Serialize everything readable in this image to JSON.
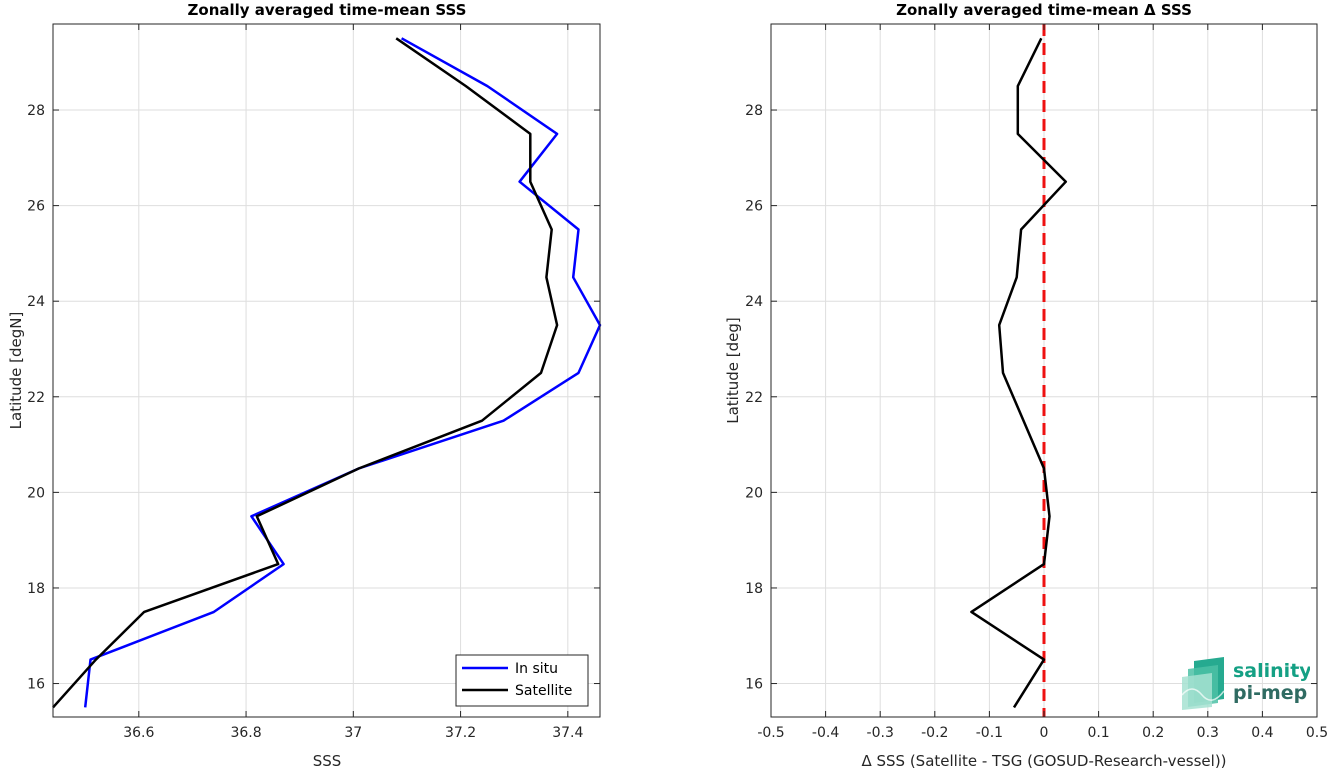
{
  "chart_data": [
    {
      "type": "line",
      "title": "Zonally averaged time-mean SSS",
      "xlabel": "SSS",
      "ylabel": "Latitude [degN]",
      "xlim": [
        36.44,
        37.46
      ],
      "ylim": [
        15.3,
        29.8
      ],
      "xticks": [
        36.6,
        36.8,
        37,
        37.2,
        37.4
      ],
      "xtick_labels": [
        "36.6",
        "36.8",
        "37",
        "37.2",
        "37.4"
      ],
      "yticks": [
        16,
        18,
        20,
        22,
        24,
        26,
        28
      ],
      "ytick_labels": [
        "16",
        "18",
        "20",
        "22",
        "24",
        "26",
        "28"
      ],
      "grid": true,
      "legend_position": "bottom-right",
      "series": [
        {
          "name": "In situ",
          "color": "#0000ff",
          "points": [
            [
              36.5,
              15.5
            ],
            [
              36.51,
              16.5
            ],
            [
              36.74,
              17.5
            ],
            [
              36.87,
              18.5
            ],
            [
              36.81,
              19.5
            ],
            [
              37.01,
              20.5
            ],
            [
              37.28,
              21.5
            ],
            [
              37.42,
              22.5
            ],
            [
              37.46,
              23.5
            ],
            [
              37.41,
              24.5
            ],
            [
              37.42,
              25.5
            ],
            [
              37.31,
              26.5
            ],
            [
              37.38,
              27.5
            ],
            [
              37.25,
              28.5
            ],
            [
              37.09,
              29.5
            ]
          ]
        },
        {
          "name": "Satellite",
          "color": "#000000",
          "points": [
            [
              36.44,
              15.5
            ],
            [
              36.52,
              16.5
            ],
            [
              36.61,
              17.5
            ],
            [
              36.86,
              18.5
            ],
            [
              36.82,
              19.5
            ],
            [
              37.01,
              20.5
            ],
            [
              37.24,
              21.5
            ],
            [
              37.35,
              22.5
            ],
            [
              37.38,
              23.5
            ],
            [
              37.36,
              24.5
            ],
            [
              37.37,
              25.5
            ],
            [
              37.33,
              26.5
            ],
            [
              37.33,
              27.5
            ],
            [
              37.21,
              28.5
            ],
            [
              37.08,
              29.5
            ]
          ]
        }
      ]
    },
    {
      "type": "line",
      "title": "Zonally averaged time-mean Δ SSS",
      "xlabel": "Δ SSS (Satellite - TSG (GOSUD-Research-vessel))",
      "ylabel": "Latitude [deg]",
      "xlim": [
        -0.5,
        0.5
      ],
      "ylim": [
        15.3,
        29.8
      ],
      "xticks": [
        -0.5,
        -0.4,
        -0.3,
        -0.2,
        -0.1,
        0,
        0.1,
        0.2,
        0.3,
        0.4,
        0.5
      ],
      "xtick_labels": [
        "-0.5",
        "-0.4",
        "-0.3",
        "-0.2",
        "-0.1",
        "0",
        "0.1",
        "0.2",
        "0.3",
        "0.4",
        "0.5"
      ],
      "yticks": [
        16,
        18,
        20,
        22,
        24,
        26,
        28
      ],
      "ytick_labels": [
        "16",
        "18",
        "20",
        "22",
        "24",
        "26",
        "28"
      ],
      "grid": true,
      "reference_line": {
        "x": 0,
        "color": "#ee1111",
        "style": "dashed"
      },
      "series": [
        {
          "color": "#000000",
          "points": [
            [
              -0.055,
              15.5
            ],
            [
              0.0,
              16.5
            ],
            [
              -0.133,
              17.5
            ],
            [
              0.0,
              18.5
            ],
            [
              0.01,
              19.5
            ],
            [
              0.0,
              20.5
            ],
            [
              -0.075,
              22.5
            ],
            [
              -0.082,
              23.5
            ],
            [
              -0.05,
              24.5
            ],
            [
              -0.042,
              25.5
            ],
            [
              0.04,
              26.5
            ],
            [
              -0.048,
              27.5
            ],
            [
              -0.048,
              28.5
            ],
            [
              -0.005,
              29.5
            ]
          ]
        }
      ]
    }
  ],
  "logo": {
    "line1": "salinity",
    "line2": "pi-mep",
    "color": "#14a084"
  }
}
